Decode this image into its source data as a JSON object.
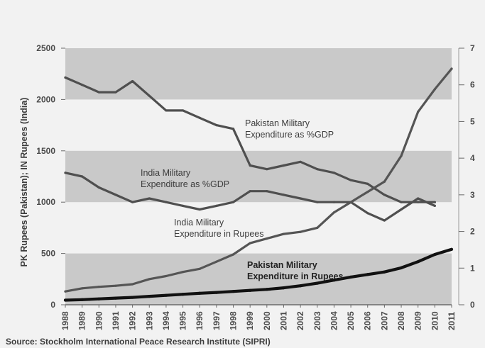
{
  "chart_data": {
    "type": "line",
    "ylabel": "PK Rupees (Pakistan); IN Rupees (India)",
    "source": "Source: Stockholm International Peace Research Institute (SIPRI)",
    "x": [
      "1988",
      "1989",
      "1990",
      "1991",
      "1992",
      "1993",
      "1994",
      "1995",
      "1996",
      "1997",
      "1998",
      "1999",
      "2000",
      "2001",
      "2002",
      "2003",
      "2004",
      "2005",
      "2006",
      "2007",
      "2008",
      "2009",
      "2010",
      "2011"
    ],
    "y_left": {
      "min": 0,
      "max": 2500,
      "ticks": [
        "0",
        "500",
        "1000",
        "1500",
        "2000",
        "2500"
      ]
    },
    "y_right": {
      "min": 0,
      "max": 7,
      "ticks": [
        "0",
        "1",
        "2",
        "3",
        "4",
        "5",
        "6",
        "7"
      ]
    },
    "bands_left": [
      [
        0,
        500
      ],
      [
        1000,
        1500
      ],
      [
        2000,
        2500
      ]
    ],
    "series": [
      {
        "name": "Pakistan Military Expenditure as %GDP",
        "axis": "right",
        "values": [
          6.2,
          6.0,
          5.8,
          5.8,
          6.1,
          5.7,
          5.3,
          5.3,
          5.1,
          4.9,
          4.8,
          3.8,
          3.7,
          3.8,
          3.9,
          3.7,
          3.6,
          3.4,
          3.3,
          3.0,
          2.8,
          2.8,
          2.8,
          null
        ],
        "color": "#4f4f4f"
      },
      {
        "name": "India Military Expenditure as %GDP",
        "axis": "right",
        "values": [
          3.6,
          3.5,
          3.2,
          3.0,
          2.8,
          2.9,
          2.8,
          2.7,
          2.6,
          2.7,
          2.8,
          3.1,
          3.1,
          3.0,
          2.9,
          2.8,
          2.8,
          2.8,
          2.5,
          2.3,
          2.6,
          2.9,
          2.7,
          null
        ],
        "color": "#4f4f4f"
      },
      {
        "name": "India Military Expenditure in Rupees",
        "axis": "left",
        "values": [
          130,
          160,
          175,
          185,
          200,
          250,
          280,
          320,
          350,
          420,
          490,
          600,
          645,
          690,
          710,
          750,
          900,
          1000,
          1100,
          1200,
          1450,
          1880,
          2100,
          2300
        ],
        "color": "#555555"
      },
      {
        "name": "Pakistan Military Expenditure in Rupees",
        "axis": "left",
        "values": [
          45,
          50,
          57,
          65,
          72,
          82,
          92,
          102,
          112,
          120,
          130,
          140,
          150,
          165,
          185,
          210,
          240,
          270,
          295,
          320,
          360,
          420,
          490,
          540
        ],
        "color": "#111111"
      }
    ],
    "annotations": [
      {
        "series": "Pakistan Military Expenditure as %GDP",
        "lines": [
          "Pakistan Military",
          "Expenditure as %GDP"
        ]
      },
      {
        "series": "India Military Expenditure as %GDP",
        "lines": [
          "India Military",
          "Expenditure as %GDP"
        ]
      },
      {
        "series": "India Military Expenditure in Rupees",
        "lines": [
          "India Military",
          "Expenditure in Rupees"
        ]
      },
      {
        "series": "Pakistan Military Expenditure in Rupees",
        "lines": [
          "Pakistan Military",
          "Expenditure in Rupees"
        ]
      }
    ],
    "grid": false
  }
}
